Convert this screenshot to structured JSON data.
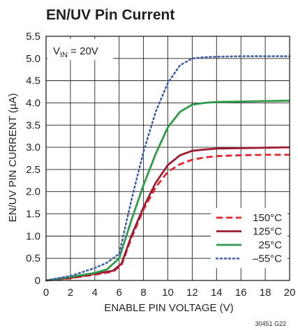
{
  "chart_data": {
    "type": "line",
    "title": "EN/UV Pin Current",
    "xlabel": "ENABLE PIN VOLTAGE (V)",
    "ylabel": "EN/UV PIN CURRENT (µA)",
    "annotation": {
      "main": "V",
      "sub": "IN",
      "rest": " = 20V"
    },
    "footnote": "30451 G22",
    "xlim": [
      0,
      20
    ],
    "ylim": [
      0,
      5.5
    ],
    "xticks": [
      "0",
      "2",
      "4",
      "6",
      "8",
      "10",
      "12",
      "14",
      "16",
      "18",
      "20"
    ],
    "yticks": [
      "0",
      "0.5",
      "1.0",
      "1.5",
      "2.0",
      "2.5",
      "3.0",
      "3.5",
      "4.0",
      "4.5",
      "5.0",
      "5.5"
    ],
    "grid": true,
    "legend_position": "bottom-right",
    "series": [
      {
        "name": "150°C",
        "color": "#e3242b",
        "style": "dashed",
        "x": [
          0,
          2,
          4,
          5.5,
          6.2,
          7,
          8,
          9,
          10,
          11,
          12,
          13,
          14,
          16,
          18,
          20
        ],
        "y": [
          0,
          0.05,
          0.13,
          0.2,
          0.35,
          0.95,
          1.6,
          2.1,
          2.45,
          2.62,
          2.72,
          2.77,
          2.8,
          2.82,
          2.83,
          2.83
        ]
      },
      {
        "name": "125°C",
        "color": "#9e1b32",
        "style": "solid",
        "x": [
          0,
          2,
          4,
          5.5,
          6.2,
          7,
          8,
          9,
          10,
          11,
          12,
          13,
          14,
          16,
          18,
          20
        ],
        "y": [
          0,
          0.06,
          0.15,
          0.22,
          0.38,
          1.0,
          1.65,
          2.2,
          2.6,
          2.82,
          2.92,
          2.95,
          2.97,
          2.98,
          2.99,
          3.0
        ]
      },
      {
        "name": "25°C",
        "color": "#2e9a4a",
        "style": "solid",
        "x": [
          0,
          2,
          4,
          5,
          6,
          7,
          8,
          9,
          10,
          11,
          12,
          13,
          14,
          16,
          18,
          20
        ],
        "y": [
          0,
          0.08,
          0.17,
          0.25,
          0.5,
          1.35,
          2.15,
          2.85,
          3.45,
          3.8,
          3.96,
          4.0,
          4.02,
          4.03,
          4.04,
          4.05
        ]
      },
      {
        "name": "–55°C",
        "color": "#3e5fa8",
        "style": "dotted",
        "x": [
          0,
          2,
          4,
          5,
          6,
          6.5,
          7,
          8,
          9,
          10,
          11,
          12,
          13,
          14,
          16,
          18,
          20
        ],
        "y": [
          0,
          0.1,
          0.28,
          0.4,
          0.6,
          1.2,
          1.8,
          2.9,
          3.8,
          4.45,
          4.85,
          5.0,
          5.03,
          5.04,
          5.05,
          5.05,
          5.05
        ]
      }
    ]
  }
}
